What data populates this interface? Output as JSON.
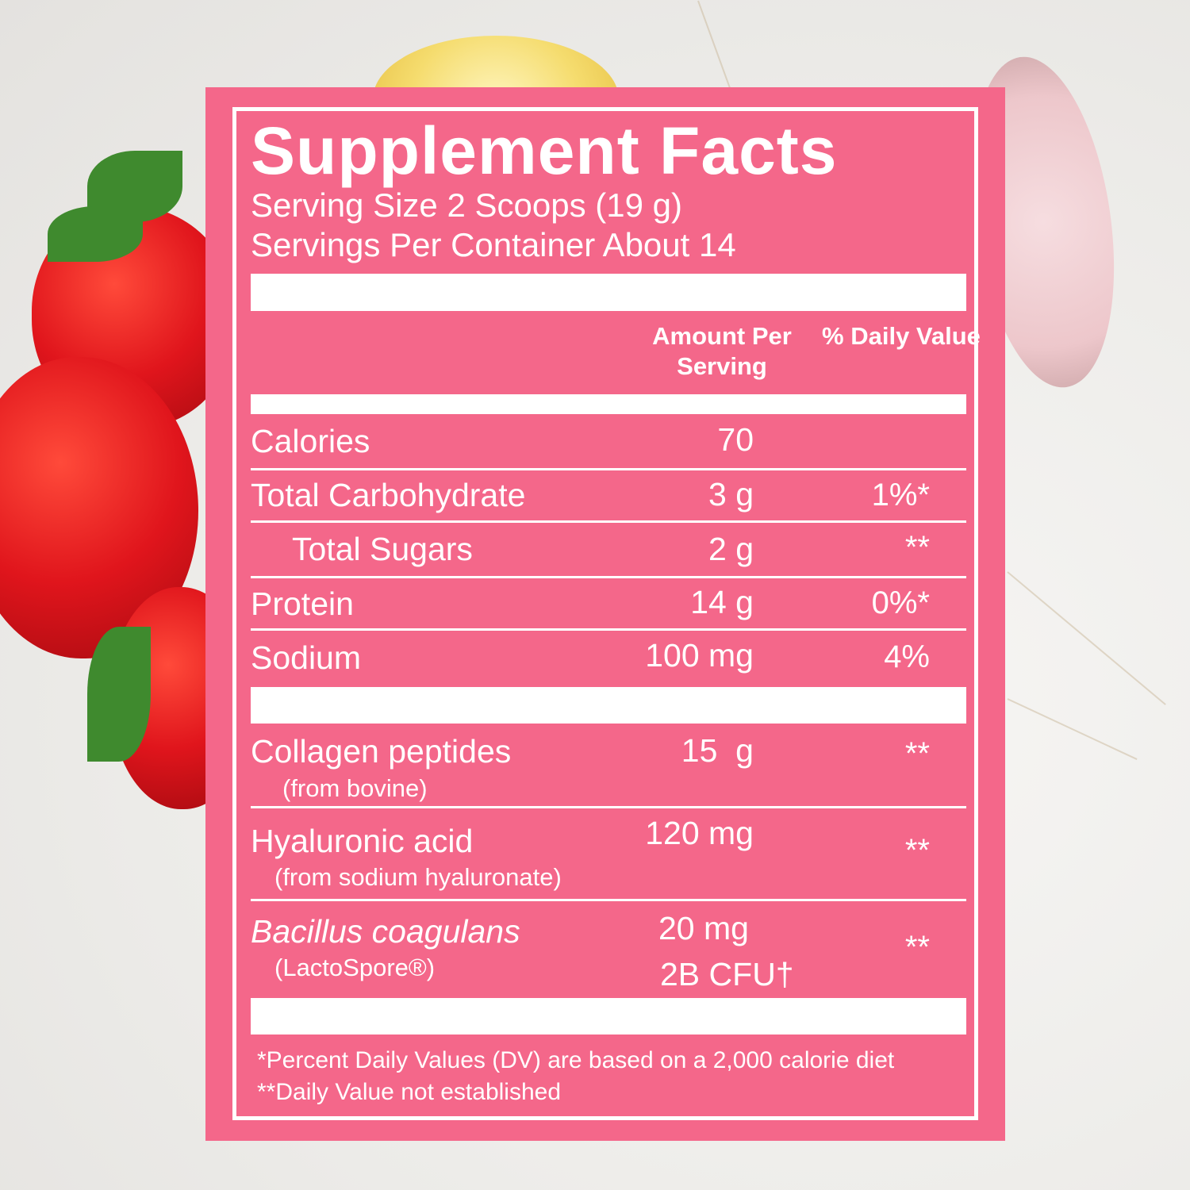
{
  "label": {
    "title": "Supplement Facts",
    "serving_size": "Serving Size 2 Scoops (19 g)",
    "servings_per_container": "Servings Per Container About 14",
    "header_amount": "Amount Per Serving",
    "header_dv": "% Daily Value",
    "rows": [
      {
        "name": "Calories",
        "amount": "70",
        "dv": ""
      },
      {
        "name": "Total Carbohydrate",
        "amount": "3 g",
        "dv": "1%*"
      },
      {
        "name": "Total Sugars",
        "amount": "2 g",
        "dv": "**"
      },
      {
        "name": "Protein",
        "amount": "14 g",
        "dv": "0%*"
      },
      {
        "name": "Sodium",
        "amount": "100 mg",
        "dv": "4%"
      }
    ],
    "ingredients": [
      {
        "name": "Collagen peptides",
        "sub": "(from bovine)",
        "amount": "15  g",
        "dv": "**"
      },
      {
        "name": "Hyaluronic acid",
        "sub": "(from sodium hyaluronate)",
        "amount": "120 mg",
        "dv": "**"
      },
      {
        "name": "Bacillus coagulans",
        "sub": "(LactoSpore®)",
        "amount": "20 mg",
        "amount2": "2B CFU†",
        "dv": "**"
      }
    ],
    "footnote1": "*Percent Daily Values (DV) are based on a 2,000 calorie diet",
    "footnote2": "**Daily Value not established"
  },
  "colors": {
    "label_pink": "#f4678a",
    "text": "#ffffff"
  }
}
